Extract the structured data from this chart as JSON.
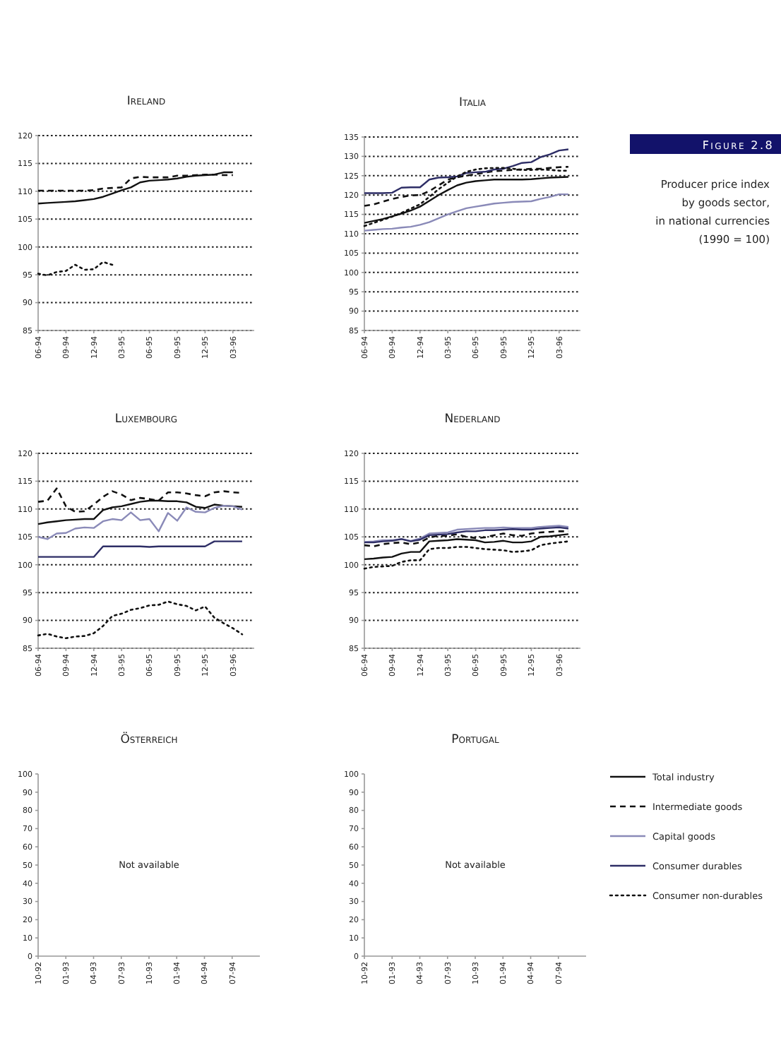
{
  "chart_data": [
    {
      "type": "line",
      "title": "Ireland",
      "categories": [
        "06-94",
        null,
        null,
        "09-94",
        null,
        null,
        "12-94",
        null,
        null,
        "03-95",
        null,
        null,
        "06-95",
        null,
        null,
        "09-95",
        null,
        null,
        "12-95",
        null,
        null,
        "03-96",
        null,
        null
      ],
      "ylim": [
        85,
        120
      ],
      "yticks": [
        85,
        90,
        95,
        100,
        105,
        110,
        115,
        120
      ],
      "grid": "y",
      "series": [
        {
          "color": "#111111",
          "line_style": "solid",
          "values": [
            107.8,
            107.9,
            108.0,
            108.1,
            108.2,
            108.4,
            108.6,
            109.0,
            109.6,
            110.2,
            110.7,
            111.6,
            111.9,
            112.0,
            112.1,
            112.3,
            112.6,
            112.8,
            112.9,
            113.0,
            113.4,
            113.4,
            null,
            null
          ]
        },
        {
          "color": "#111111",
          "line_style": "dashed",
          "values": [
            110.1,
            110.1,
            110.1,
            110.1,
            110.1,
            110.1,
            110.2,
            110.5,
            110.6,
            110.7,
            112.3,
            112.6,
            112.5,
            112.5,
            112.5,
            112.8,
            112.8,
            112.9,
            113.0,
            113.0,
            112.9,
            112.9,
            null,
            null
          ]
        },
        {
          "color": "#111111",
          "line_style": "dotted",
          "values": [
            95.2,
            94.9,
            95.5,
            95.7,
            96.8,
            95.9,
            96.0,
            97.3,
            96.8,
            null,
            null,
            null,
            null,
            null,
            null,
            null,
            null,
            null,
            null,
            null,
            null,
            null,
            null,
            null
          ]
        }
      ]
    },
    {
      "type": "line",
      "title": "Italia",
      "categories": [
        "06-94",
        null,
        null,
        "09-94",
        null,
        null,
        "12-94",
        null,
        null,
        "03-95",
        null,
        null,
        "06-95",
        null,
        null,
        "09-95",
        null,
        null,
        "12-95",
        null,
        null,
        "03-96",
        null,
        null
      ],
      "ylim": [
        85,
        135
      ],
      "yticks": [
        85,
        90,
        95,
        100,
        105,
        110,
        115,
        120,
        125,
        130,
        135
      ],
      "grid": "y",
      "annotations": [
        "Figure 2.8",
        "Producer price index by goods sector, in national currencies (1990 = 100)"
      ],
      "legend": "right",
      "series": [
        {
          "name": "Total industry",
          "color": "#111111",
          "line_style": "solid",
          "values": [
            112.8,
            113.3,
            113.8,
            114.5,
            115.2,
            116.0,
            117.0,
            118.5,
            120.0,
            121.3,
            122.5,
            123.2,
            123.6,
            123.8,
            124.0,
            124.0,
            124.0,
            124.0,
            124.1,
            124.3,
            124.5,
            124.6,
            124.7,
            null
          ]
        },
        {
          "name": "Intermediate goods",
          "color": "#111111",
          "line_style": "dashed",
          "values": [
            117.2,
            117.6,
            118.3,
            119.0,
            119.5,
            119.9,
            120.0,
            121.0,
            122.5,
            124.0,
            124.6,
            125.0,
            125.4,
            125.8,
            126.2,
            126.3,
            126.5,
            126.6,
            126.8,
            126.8,
            127.0,
            127.2,
            127.3,
            null
          ]
        },
        {
          "name": "Capital goods",
          "color": "#8a8ab8",
          "line_style": "solid",
          "values": [
            110.8,
            111.0,
            111.2,
            111.3,
            111.6,
            111.8,
            112.3,
            113.0,
            114.0,
            115.0,
            115.8,
            116.6,
            117.0,
            117.4,
            117.8,
            118.0,
            118.2,
            118.3,
            118.4,
            119.0,
            119.5,
            120.2,
            120.2,
            null
          ]
        },
        {
          "name": "Consumer durables",
          "color": "#2e2e66",
          "line_style": "solid",
          "values": [
            120.5,
            120.5,
            120.5,
            120.6,
            121.9,
            122.0,
            122.0,
            124.0,
            124.5,
            124.6,
            124.8,
            125.7,
            125.9,
            126.0,
            126.6,
            126.8,
            127.5,
            128.3,
            128.5,
            129.8,
            130.5,
            131.5,
            131.8,
            null
          ]
        },
        {
          "name": "Consumer non-durables",
          "color": "#111111",
          "line_style": "dotted",
          "values": [
            112.0,
            112.8,
            113.6,
            114.4,
            115.4,
            116.5,
            117.6,
            119.5,
            121.5,
            123.2,
            124.8,
            126.0,
            126.6,
            126.9,
            127.0,
            127.0,
            126.8,
            126.5,
            126.5,
            126.6,
            126.5,
            126.3,
            126.3,
            null
          ]
        }
      ]
    },
    {
      "type": "line",
      "title": "Luxembourg",
      "categories": [
        "06-94",
        null,
        null,
        "09-94",
        null,
        null,
        "12-94",
        null,
        null,
        "03-95",
        null,
        null,
        "06-95",
        null,
        null,
        "09-95",
        null,
        null,
        "12-95",
        null,
        null,
        "03-96",
        null,
        null
      ],
      "ylim": [
        85,
        120
      ],
      "yticks": [
        85,
        90,
        95,
        100,
        105,
        110,
        115,
        120
      ],
      "grid": "y",
      "series": [
        {
          "color": "#111111",
          "line_style": "solid",
          "values": [
            107.3,
            107.6,
            107.8,
            108.0,
            108.1,
            108.2,
            108.2,
            109.8,
            110.3,
            110.5,
            110.9,
            111.3,
            111.5,
            111.5,
            111.4,
            111.4,
            111.2,
            110.4,
            110.2,
            110.8,
            110.6,
            110.5,
            110.4,
            null
          ]
        },
        {
          "color": "#111111",
          "line_style": "dashed",
          "values": [
            111.3,
            111.5,
            113.7,
            110.5,
            109.5,
            109.6,
            110.8,
            112.2,
            113.2,
            112.6,
            111.6,
            112.0,
            111.8,
            111.5,
            113.0,
            113.0,
            112.8,
            112.5,
            112.3,
            113.0,
            113.2,
            113.0,
            112.9,
            null
          ]
        },
        {
          "color": "#8a8ab8",
          "line_style": "solid",
          "values": [
            105.0,
            104.6,
            105.6,
            105.7,
            106.5,
            106.7,
            106.6,
            107.8,
            108.2,
            108.0,
            109.4,
            108.0,
            108.2,
            106.0,
            109.3,
            107.9,
            110.3,
            109.5,
            109.4,
            110.2,
            110.6,
            110.5,
            109.9,
            null
          ]
        },
        {
          "color": "#2e2e66",
          "line_style": "solid",
          "values": [
            101.4,
            101.4,
            101.4,
            101.4,
            101.4,
            101.4,
            101.4,
            103.3,
            103.3,
            103.3,
            103.3,
            103.3,
            103.2,
            103.3,
            103.3,
            103.3,
            103.3,
            103.3,
            103.3,
            104.2,
            104.2,
            104.2,
            104.2,
            null
          ]
        },
        {
          "color": "#111111",
          "line_style": "dotted",
          "values": [
            87.3,
            87.6,
            87.1,
            86.8,
            87.1,
            87.2,
            87.7,
            89.0,
            90.8,
            91.2,
            91.9,
            92.2,
            92.7,
            92.8,
            93.4,
            92.9,
            92.6,
            91.8,
            92.5,
            90.5,
            89.5,
            88.6,
            87.5,
            null
          ]
        }
      ]
    },
    {
      "type": "line",
      "title": "Nederland",
      "categories": [
        "06-94",
        null,
        null,
        "09-94",
        null,
        null,
        "12-94",
        null,
        null,
        "03-95",
        null,
        null,
        "06-95",
        null,
        null,
        "09-95",
        null,
        null,
        "12-95",
        null,
        null,
        "03-96",
        null,
        null
      ],
      "ylim": [
        85,
        120
      ],
      "yticks": [
        85,
        90,
        95,
        100,
        105,
        110,
        115,
        120
      ],
      "grid": "y",
      "series": [
        {
          "color": "#111111",
          "line_style": "solid",
          "values": [
            101.0,
            101.1,
            101.3,
            101.4,
            102.0,
            102.3,
            102.3,
            104.2,
            104.3,
            104.4,
            104.6,
            104.5,
            104.4,
            104.0,
            104.1,
            104.3,
            104.0,
            104.0,
            104.2,
            105.0,
            105.1,
            105.3,
            105.5,
            null
          ]
        },
        {
          "color": "#111111",
          "line_style": "dashed",
          "values": [
            103.5,
            103.3,
            103.7,
            103.9,
            104.0,
            103.7,
            104.0,
            104.9,
            105.2,
            105.2,
            105.5,
            105.0,
            104.8,
            104.9,
            105.3,
            105.6,
            105.3,
            105.2,
            105.6,
            105.8,
            105.9,
            106.0,
            106.0,
            null
          ]
        },
        {
          "color": "#8a8ab8",
          "line_style": "solid",
          "values": [
            104.1,
            104.2,
            104.4,
            104.4,
            104.6,
            104.3,
            104.7,
            105.6,
            105.7,
            105.8,
            106.3,
            106.4,
            106.5,
            106.6,
            106.6,
            106.7,
            106.6,
            106.6,
            106.6,
            106.8,
            106.9,
            107.0,
            106.8,
            null
          ]
        },
        {
          "color": "#2e2e66",
          "line_style": "solid",
          "values": [
            104.0,
            104.0,
            104.2,
            104.3,
            104.6,
            104.2,
            104.5,
            105.3,
            105.4,
            105.5,
            105.8,
            106.0,
            106.0,
            106.2,
            106.2,
            106.3,
            106.4,
            106.3,
            106.3,
            106.5,
            106.6,
            106.7,
            106.5,
            null
          ]
        },
        {
          "color": "#111111",
          "line_style": "dotted",
          "values": [
            99.3,
            99.6,
            99.7,
            99.8,
            100.5,
            100.8,
            100.8,
            102.8,
            103.0,
            103.0,
            103.2,
            103.2,
            103.0,
            102.8,
            102.7,
            102.6,
            102.3,
            102.4,
            102.6,
            103.5,
            103.8,
            104.0,
            104.2,
            null
          ]
        }
      ]
    },
    {
      "type": "line",
      "title": "Österreich",
      "categories": [
        "10-92",
        "01-93",
        "04-93",
        "07-93",
        "10-93",
        "01-94",
        "04-94",
        "07-94"
      ],
      "ylim": [
        0,
        100
      ],
      "yticks": [
        0,
        10,
        20,
        30,
        40,
        50,
        60,
        70,
        80,
        90,
        100
      ],
      "annotations": [
        "Not available"
      ]
    },
    {
      "type": "line",
      "title": "Portugal",
      "categories": [
        "10-92",
        "01-93",
        "04-93",
        "07-93",
        "10-93",
        "01-94",
        "04-94",
        "07-94"
      ],
      "ylim": [
        0,
        100
      ],
      "yticks": [
        0,
        10,
        20,
        30,
        40,
        50,
        60,
        70,
        80,
        90,
        100
      ],
      "annotations": [
        "Not available"
      ]
    }
  ]
}
